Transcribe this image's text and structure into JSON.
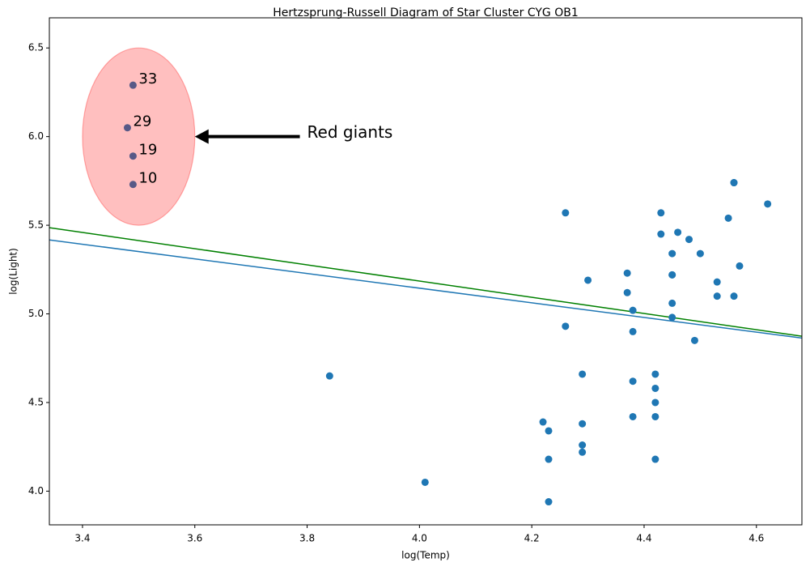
{
  "chart_data": {
    "type": "scatter",
    "title": "Hertzsprung-Russell Diagram of Star Cluster CYG OB1",
    "xlabel": "log(Temp)",
    "ylabel": "log(Light)",
    "xlim": [
      3.341,
      4.681
    ],
    "ylim": [
      3.81,
      6.67
    ],
    "xticks": [
      3.4,
      3.6,
      3.8,
      4.0,
      4.2,
      4.4,
      4.6
    ],
    "xtick_labels": [
      "3.4",
      "3.6",
      "3.8",
      "4.0",
      "4.2",
      "4.4",
      "4.6"
    ],
    "yticks": [
      4.0,
      4.5,
      5.0,
      5.5,
      6.0,
      6.5
    ],
    "ytick_labels": [
      "4.0",
      "4.5",
      "5.0",
      "5.5",
      "6.0",
      "6.5"
    ],
    "grid": false,
    "point_color": "#1f77b4",
    "points": {
      "x": [
        4.37,
        4.56,
        4.26,
        4.56,
        4.3,
        4.46,
        3.84,
        4.57,
        4.26,
        4.37,
        3.49,
        4.43,
        4.48,
        4.01,
        4.29,
        4.42,
        4.23,
        4.42,
        4.23,
        3.49,
        4.29,
        4.29,
        4.42,
        4.49,
        4.38,
        4.42,
        4.29,
        4.38,
        4.22,
        3.48,
        4.38,
        4.56,
        4.45,
        3.49,
        4.23,
        4.62,
        4.53,
        4.45,
        4.53,
        4.43,
        4.38,
        4.45,
        4.5,
        4.45,
        4.55,
        4.45,
        4.42
      ],
      "y": [
        5.23,
        5.74,
        4.93,
        5.74,
        5.19,
        5.46,
        4.65,
        5.27,
        5.57,
        5.12,
        5.73,
        5.45,
        5.42,
        4.05,
        4.26,
        4.58,
        3.94,
        4.18,
        4.18,
        5.89,
        4.38,
        4.22,
        4.42,
        4.85,
        5.02,
        4.66,
        4.66,
        4.9,
        4.39,
        6.05,
        4.42,
        5.1,
        5.22,
        6.29,
        4.34,
        5.62,
        5.1,
        5.22,
        5.18,
        5.57,
        4.62,
        5.06,
        5.34,
        5.34,
        5.54,
        4.98,
        4.5
      ]
    },
    "lines": [
      {
        "color": "#1f77b4",
        "intercept": 6.797,
        "slope": -0.413
      },
      {
        "color": "#008000",
        "intercept": 7.013,
        "slope": -0.457
      }
    ],
    "point_labels": [
      {
        "index": 33,
        "text": "33"
      },
      {
        "index": 29,
        "text": "29"
      },
      {
        "index": 19,
        "text": "19"
      },
      {
        "index": 10,
        "text": "10"
      }
    ],
    "ellipse": {
      "center": [
        3.5,
        6.0
      ],
      "width": 0.2,
      "height": 1.0,
      "fill": "#ff0000",
      "edge": "#ff0000"
    },
    "annotation": {
      "text": "Red giants",
      "text_xy": [
        3.8,
        6.0
      ],
      "arrow_to": [
        3.6,
        6.0
      ],
      "arrow_color": "#000000"
    }
  }
}
